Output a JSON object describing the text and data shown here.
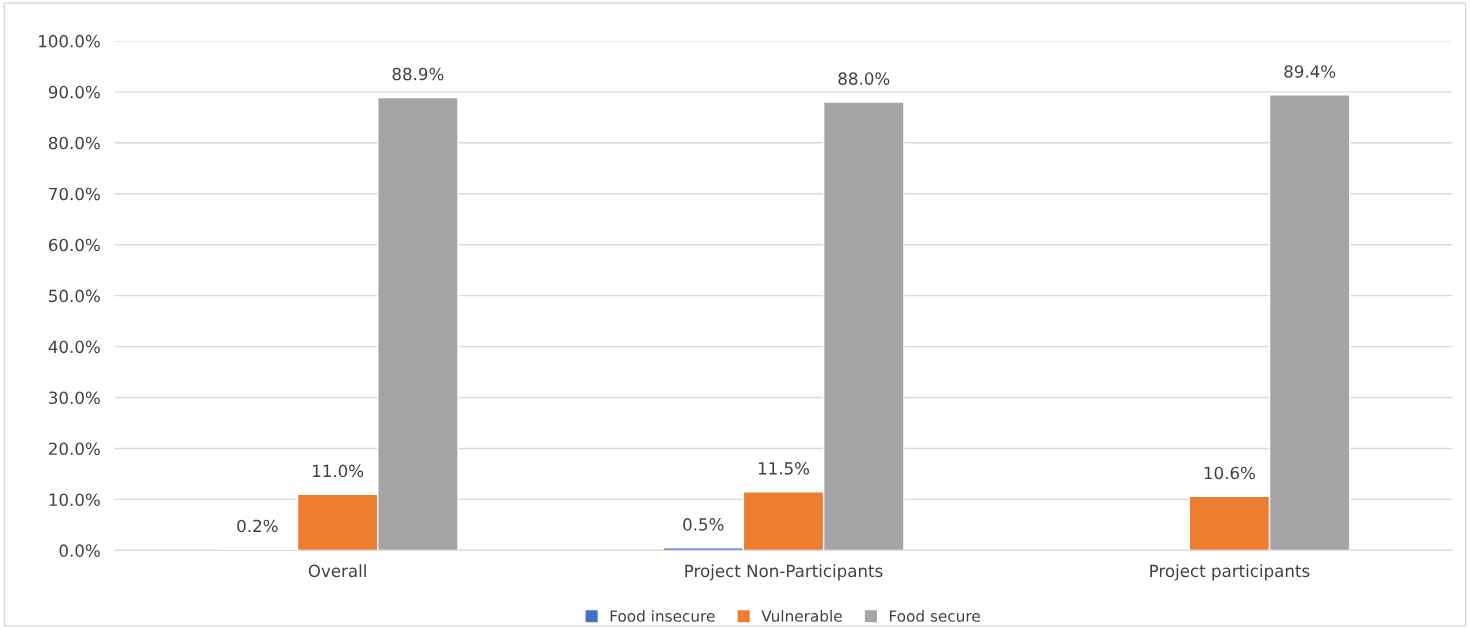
{
  "chart_data": {
    "type": "bar",
    "categories": [
      "Overall",
      "Project Non-Participants",
      "Project participants"
    ],
    "series": [
      {
        "name": "Food insecure",
        "color": "#4472c4",
        "values": [
          0.2,
          0.5,
          null
        ],
        "value_labels": [
          "0.2%",
          "0.5%",
          null
        ]
      },
      {
        "name": "Vulnerable",
        "color": "#ed7d31",
        "values": [
          11.0,
          11.5,
          10.6
        ],
        "value_labels": [
          "11.0%",
          "11.5%",
          "10.6%"
        ]
      },
      {
        "name": "Food secure",
        "color": "#a5a5a5",
        "values": [
          88.9,
          88.0,
          89.4
        ],
        "value_labels": [
          "88.9%",
          "88.0%",
          "89.4%"
        ]
      }
    ],
    "ylim": [
      0,
      100
    ],
    "yticks": [
      {
        "value": 0,
        "label": "0.0%"
      },
      {
        "value": 10,
        "label": "10.0%"
      },
      {
        "value": 20,
        "label": "20.0%"
      },
      {
        "value": 30,
        "label": "30.0%"
      },
      {
        "value": 40,
        "label": "40.0%"
      },
      {
        "value": 50,
        "label": "50.0%"
      },
      {
        "value": 60,
        "label": "60.0%"
      },
      {
        "value": 70,
        "label": "70.0%"
      },
      {
        "value": 80,
        "label": "80.0%"
      },
      {
        "value": 90,
        "label": "90.0%"
      },
      {
        "value": 100,
        "label": "100.0%"
      }
    ],
    "grid": "y",
    "legend": "bottom"
  }
}
